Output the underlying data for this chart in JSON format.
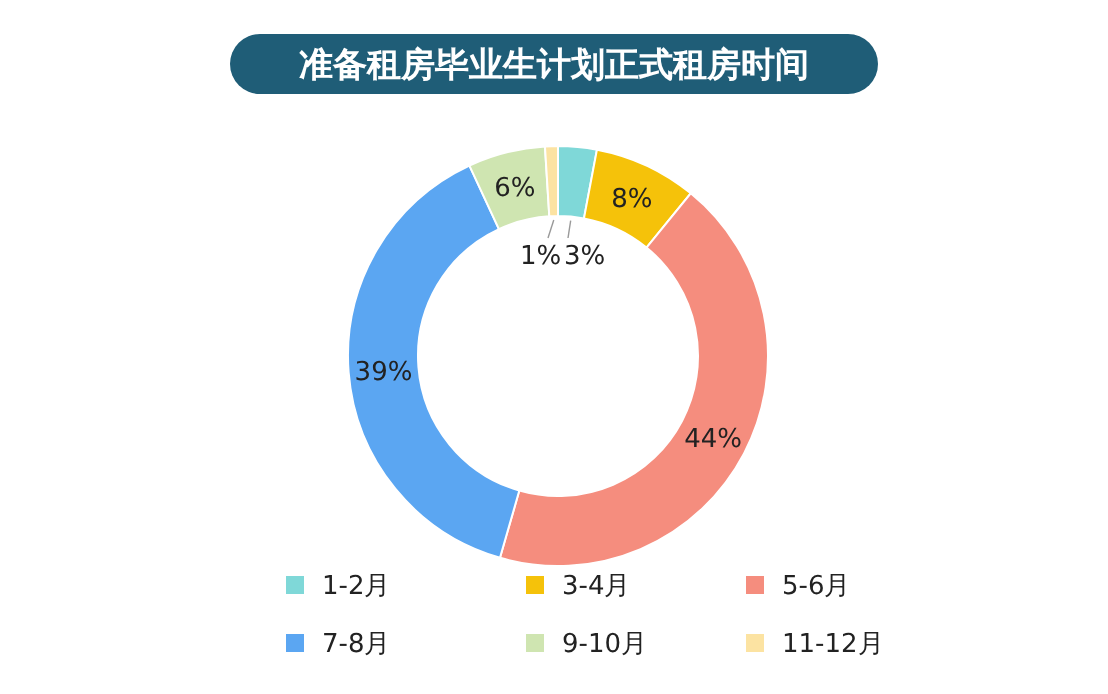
{
  "chart_data": {
    "type": "donut",
    "title": "准备租房毕业生计划正式租房时间",
    "categories": [
      "1-2月",
      "3-4月",
      "5-6月",
      "7-8月",
      "9-10月",
      "11-12月"
    ],
    "values": [
      3,
      8,
      44,
      39,
      6,
      1
    ],
    "colors": [
      "#7fd8d8",
      "#f5c20a",
      "#f58d7e",
      "#5ba6f2",
      "#cfe5b1",
      "#fce3a2"
    ],
    "value_labels": [
      "3%",
      "8%",
      "44%",
      "39%",
      "6%",
      "1%"
    ],
    "legend": "bottom"
  }
}
